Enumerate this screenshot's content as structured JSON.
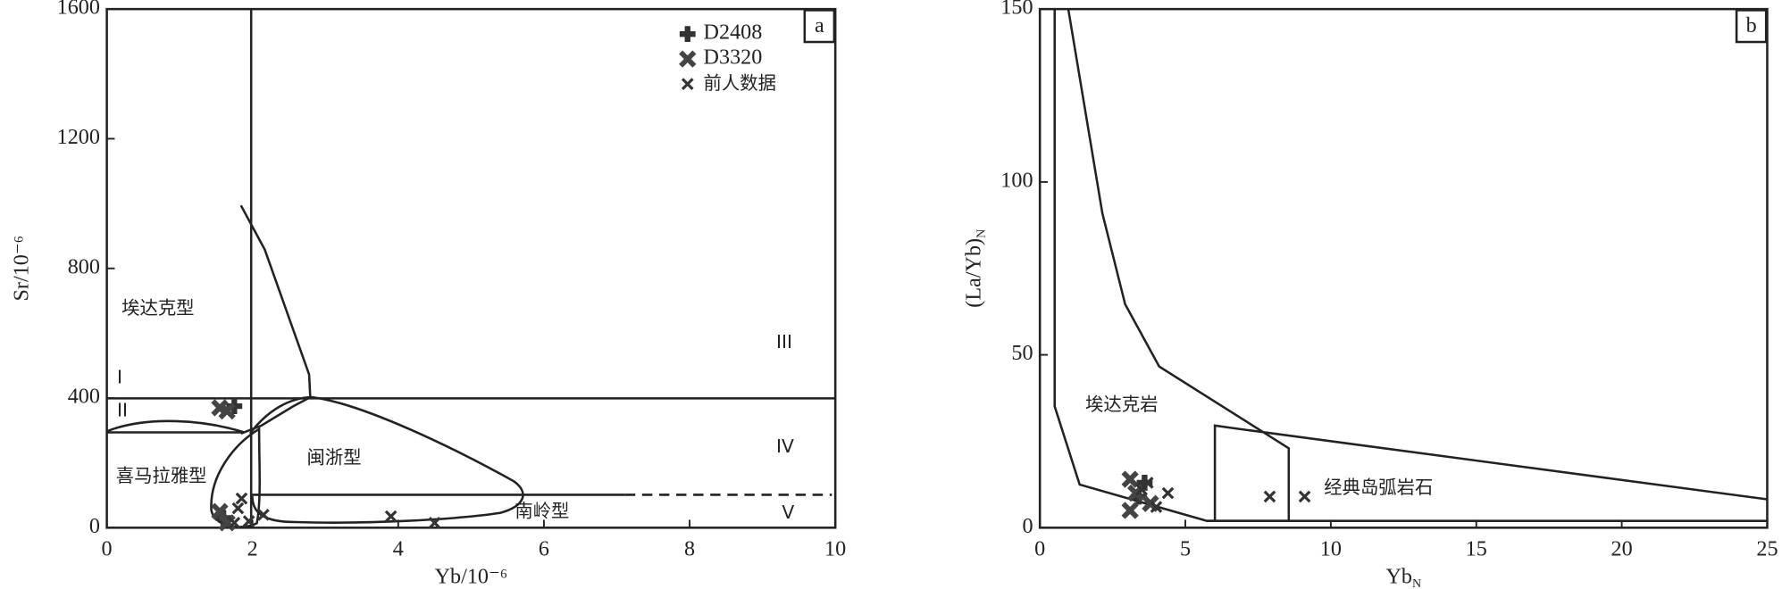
{
  "chart_data": [
    {
      "type": "scatter",
      "panel_label": "a",
      "xlabel": "Yb/10⁻⁶",
      "ylabel": "Sr/10⁻⁶",
      "xlim": [
        0,
        10
      ],
      "ylim": [
        0,
        1600
      ],
      "xticks": [
        0,
        2,
        4,
        6,
        8,
        10
      ],
      "yticks": [
        0,
        400,
        800,
        1200,
        1600
      ],
      "legend": "upper right",
      "series": [
        {
          "name": "D2408",
          "marker": "plus",
          "color": "#333333",
          "x": [
            1.75,
            1.6
          ],
          "y": [
            375,
            30
          ]
        },
        {
          "name": "D3320",
          "marker": "boldx",
          "color": "#444444",
          "x": [
            1.55,
            1.65,
            1.55,
            1.65
          ],
          "y": [
            370,
            360,
            50,
            15
          ]
        },
        {
          "name": "前人数据",
          "marker": "x",
          "color": "#333333",
          "x": [
            1.85,
            1.8,
            2.15,
            3.9,
            4.5,
            1.75,
            1.95
          ],
          "y": [
            90,
            60,
            40,
            35,
            15,
            15,
            20
          ]
        }
      ],
      "annotations": [
        "埃达克型",
        "I",
        "II",
        "III",
        "IV",
        "V",
        "喜马拉雅型",
        "闽浙型",
        "南岭型"
      ]
    },
    {
      "type": "scatter",
      "panel_label": "b",
      "xlabel": "Yb",
      "xlabel_sub": "N",
      "ylabel": "(La/Yb)",
      "ylabel_sub": "N",
      "xlim": [
        0,
        25
      ],
      "ylim": [
        0,
        150
      ],
      "xticks": [
        0,
        5,
        10,
        15,
        20,
        25
      ],
      "yticks": [
        0,
        50,
        100,
        150
      ],
      "series": [
        {
          "name": "D2408",
          "marker": "plus",
          "color": "#333333",
          "x": [
            3.6,
            3.4
          ],
          "y": [
            13,
            9
          ]
        },
        {
          "name": "D3320",
          "marker": "boldx",
          "color": "#444444",
          "x": [
            3.1,
            3.3,
            3.1,
            3.8
          ],
          "y": [
            14,
            10,
            5,
            7
          ]
        },
        {
          "name": "前人数据",
          "marker": "x",
          "color": "#333333",
          "x": [
            3.5,
            4.0,
            4.4,
            7.9,
            9.1,
            3.7
          ],
          "y": [
            11,
            6,
            10,
            9,
            9,
            13
          ]
        }
      ],
      "annotations": [
        "埃达克岩",
        "经典岛弧岩石"
      ]
    }
  ]
}
